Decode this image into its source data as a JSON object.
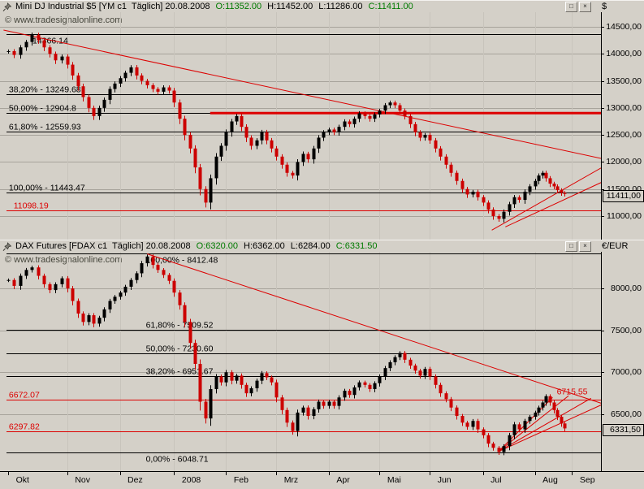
{
  "window": {
    "watermark": "© www.tradesignalonline.com"
  },
  "colors": {
    "background": "#d4d0c8",
    "candle_up": "#000000",
    "candle_down": "#cc0000",
    "trend_line": "#dd0000",
    "ohlc_positive": "#007b00",
    "axis_text": "#000000"
  },
  "time_axis": {
    "months": [
      "Okt",
      "Nov",
      "Dez",
      "2008",
      "Feb",
      "Mrz",
      "Apr",
      "Mai",
      "Jun",
      "Jul",
      "Aug",
      "Sep"
    ]
  },
  "panels": [
    {
      "title": "Mini DJ Industrial $5 [YM c1  Täglich] 20.08.2008",
      "ohlc": {
        "open": "O:11352.00",
        "high": "H:11452.00",
        "low": "L:11286.00",
        "close": "C:11411.00"
      },
      "axis_unit": "$",
      "current_price_label": "11411,00",
      "buttons": {
        "restore": "□",
        "close": "×"
      }
    },
    {
      "title": "DAX Futures [FDAX c1  Täglich] 20.08.2008",
      "ohlc": {
        "open": "O:6320.00",
        "high": "H:6362.00",
        "low": "L:6284.00",
        "close": "C:6331.50"
      },
      "axis_unit": "€/EUR",
      "current_price_label": "6331,50",
      "buttons": {
        "restore": "□",
        "close": "×"
      }
    }
  ],
  "chart_data": [
    {
      "type": "candlestick",
      "title": "Mini DJ Industrial $5",
      "symbol": "YM c1",
      "timeframe": "Täglich",
      "date": "20.08.2008",
      "open": 11352.0,
      "high": 11452.0,
      "low": 11286.0,
      "close": 11411.0,
      "x_range": "Okt 2007 - Sep 2008",
      "price_range": [
        10565,
        14770
      ],
      "y_ticks": [
        14500,
        14000,
        13500,
        13000,
        12500,
        12000,
        11500,
        11000
      ],
      "y_tick_labels": [
        "14500,00",
        "14000,00",
        "13500,00",
        "13000,00",
        "12500,00",
        "12000,00",
        "11500,00",
        "11000,00"
      ],
      "closes": [
        14050,
        13980,
        14120,
        14220,
        14350,
        14250,
        14120,
        14000,
        13880,
        13950,
        13800,
        13600,
        13400,
        13200,
        13000,
        12850,
        13000,
        13150,
        13350,
        13450,
        13550,
        13650,
        13750,
        13600,
        13500,
        13420,
        13350,
        13300,
        13380,
        13320,
        13100,
        12800,
        12500,
        12250,
        11900,
        11500,
        11250,
        11700,
        12100,
        12300,
        12550,
        12750,
        12850,
        12650,
        12450,
        12300,
        12400,
        12550,
        12400,
        12250,
        12100,
        11950,
        11800,
        11750,
        12000,
        12150,
        12050,
        12250,
        12450,
        12550,
        12600,
        12550,
        12650,
        12750,
        12700,
        12800,
        12900,
        12850,
        12800,
        12880,
        12950,
        13050,
        13100,
        13050,
        12950,
        12850,
        12700,
        12550,
        12450,
        12500,
        12400,
        12250,
        12100,
        11950,
        11800,
        11650,
        11500,
        11400,
        11450,
        11350,
        11250,
        11120,
        11000,
        10950,
        11080,
        11220,
        11350,
        11300,
        11450,
        11550,
        11650,
        11750,
        11800,
        11700,
        11600,
        11550,
        11480,
        11430,
        11411
      ],
      "levels": [
        {
          "text": "14366.14",
          "price": 14366.14,
          "color": "#000000",
          "label_below": true,
          "label_x_f": 0.044
        },
        {
          "text": "38,20% - 13249.68",
          "price": 13249.68,
          "color": "#000000",
          "label_x_f": 0.004
        },
        {
          "text": "50,00% - 12904.8",
          "price": 12904.8,
          "color": "#000000",
          "label_x_f": 0.004
        },
        {
          "text": "61,80% - 12559.93",
          "price": 12559.93,
          "color": "#000000",
          "label_x_f": 0.004
        },
        {
          "text": "100,00% - 11443.47",
          "price": 11443.47,
          "color": "#000000",
          "label_x_f": 0.004
        },
        {
          "text": "11098.19",
          "price": 11098.19,
          "color": "#dd0000",
          "label_x_f": 0.012
        }
      ],
      "trend_lines": [
        {
          "x1_f": -0.005,
          "p1": 14440,
          "x2_f": 1.01,
          "p2": 12060,
          "color": "#dd0000",
          "width": 1
        },
        {
          "x1_f": 0.345,
          "p1": 12904.8,
          "x2_f": 1.007,
          "p2": 12904.8,
          "color": "#dd0000",
          "width": 3
        },
        {
          "x1_f": 0.822,
          "p1": 10740,
          "x2_f": 1.007,
          "p2": 11890,
          "color": "#dd0000",
          "width": 1
        },
        {
          "x1_f": 0.845,
          "p1": 10800,
          "x2_f": 1.007,
          "p2": 11620,
          "color": "#dd0000",
          "width": 1
        }
      ]
    },
    {
      "type": "candlestick",
      "title": "DAX Futures",
      "symbol": "FDAX c1",
      "timeframe": "Täglich",
      "date": "20.08.2008",
      "open": 6320.0,
      "high": 6362.0,
      "low": 6284.0,
      "close": 6331.5,
      "x_range": "Okt 2007 - Sep 2008",
      "price_range": [
        5822,
        8436
      ],
      "y_ticks": [
        8000,
        7500,
        7000,
        6500
      ],
      "y_tick_labels": [
        "8000,00",
        "7500,00",
        "7000,00",
        "6500,00"
      ],
      "closes": [
        8100,
        8030,
        8150,
        8220,
        8250,
        8150,
        8050,
        7980,
        8050,
        8120,
        8000,
        7850,
        7700,
        7600,
        7680,
        7580,
        7650,
        7750,
        7850,
        7900,
        7950,
        8020,
        8100,
        8180,
        8300,
        8380,
        8280,
        8220,
        8160,
        8090,
        7950,
        7800,
        7600,
        7350,
        7100,
        6650,
        6450,
        6800,
        6950,
        6880,
        7000,
        6900,
        6960,
        6850,
        6750,
        6810,
        6900,
        6990,
        6940,
        6880,
        6700,
        6550,
        6400,
        6300,
        6520,
        6580,
        6480,
        6560,
        6650,
        6600,
        6650,
        6600,
        6700,
        6780,
        6730,
        6820,
        6880,
        6850,
        6800,
        6870,
        6950,
        7050,
        7120,
        7180,
        7230,
        7150,
        7080,
        7020,
        6960,
        7040,
        6950,
        6850,
        6750,
        6680,
        6580,
        6480,
        6400,
        6350,
        6420,
        6320,
        6250,
        6150,
        6100,
        6050,
        6120,
        6250,
        6380,
        6320,
        6420,
        6470,
        6520,
        6580,
        6640,
        6715,
        6640,
        6550,
        6470,
        6390,
        6331.5
      ],
      "levels": [
        {
          "text": "100,00% - 8412.48",
          "price": 8412.48,
          "color": "#000000",
          "label_below": true,
          "label_x_f": 0.236
        },
        {
          "text": "61,80% - 7509.52",
          "price": 7509.52,
          "color": "#000000",
          "label_x_f": 0.236
        },
        {
          "text": "50,00% - 7230.60",
          "price": 7230.6,
          "color": "#000000",
          "label_x_f": 0.236
        },
        {
          "text": "38,20% - 6951.67",
          "price": 6951.67,
          "color": "#000000",
          "label_x_f": 0.236
        },
        {
          "text": "0,00% - 6048.71",
          "price": 6048.71,
          "color": "#000000",
          "label_below": true,
          "label_x_f": 0.236
        },
        {
          "text": "6672.07",
          "price": 6672.07,
          "color": "#dd0000",
          "label_x_f": 0.004
        },
        {
          "text": "6297.82",
          "price": 6297.82,
          "color": "#dd0000",
          "label_x_f": 0.004
        },
        {
          "text": "6715.55",
          "price": 6715.55,
          "color": "#dd0000",
          "label_x_f": 0.932,
          "no_line": true
        }
      ],
      "trend_lines": [
        {
          "x1_f": 0.238,
          "p1": 8412,
          "x2_f": 1.01,
          "p2": 6625,
          "color": "#dd0000",
          "width": 1
        },
        {
          "x1_f": 0.833,
          "p1": 6055,
          "x2_f": 0.925,
          "p2": 6700,
          "color": "#dd0000",
          "width": 1
        },
        {
          "x1_f": 0.833,
          "p1": 6055,
          "x2_f": 0.952,
          "p2": 6720,
          "color": "#dd0000",
          "width": 1
        },
        {
          "x1_f": 0.833,
          "p1": 6055,
          "x2_f": 0.99,
          "p2": 6690,
          "color": "#dd0000",
          "width": 1
        },
        {
          "x1_f": 0.833,
          "p1": 6055,
          "x2_f": 1.007,
          "p2": 6610,
          "color": "#dd0000",
          "width": 1
        }
      ]
    }
  ]
}
